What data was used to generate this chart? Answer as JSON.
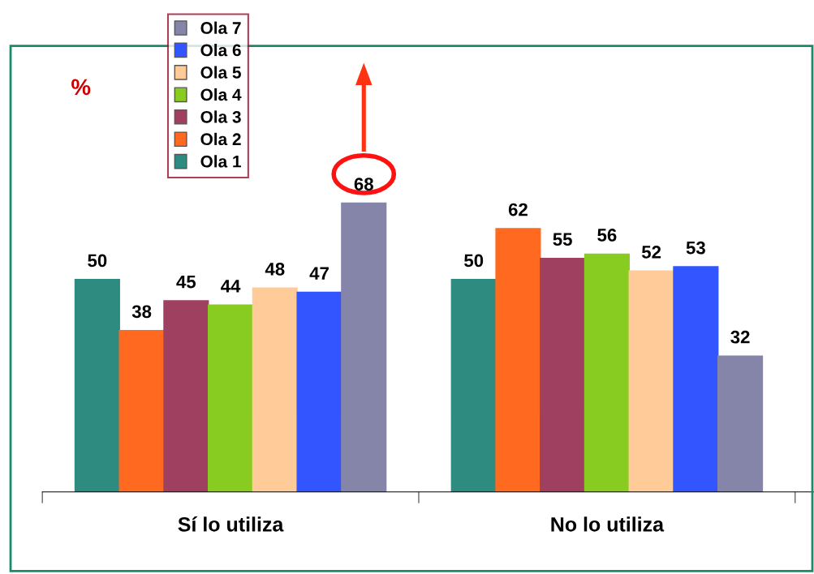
{
  "chart_data": {
    "type": "bar",
    "ylabel": "%",
    "categories": [
      "Sí lo utiliza",
      "No lo utiliza"
    ],
    "series": [
      {
        "name": "Ola 1",
        "color": "#2e8b80",
        "values": [
          50,
          50
        ]
      },
      {
        "name": "Ola 2",
        "color": "#ff6a20",
        "values": [
          38,
          62
        ]
      },
      {
        "name": "Ola 3",
        "color": "#a04060",
        "values": [
          45,
          55
        ]
      },
      {
        "name": "Ola 4",
        "color": "#88cc22",
        "values": [
          44,
          56
        ]
      },
      {
        "name": "Ola 5",
        "color": "#ffcc99",
        "values": [
          48,
          52
        ]
      },
      {
        "name": "Ola 6",
        "color": "#3355ff",
        "values": [
          47,
          53
        ]
      },
      {
        "name": "Ola 7",
        "color": "#8585aa",
        "values": [
          68,
          32
        ]
      }
    ],
    "data_labels": true,
    "legend": "top left",
    "grid": false
  }
}
